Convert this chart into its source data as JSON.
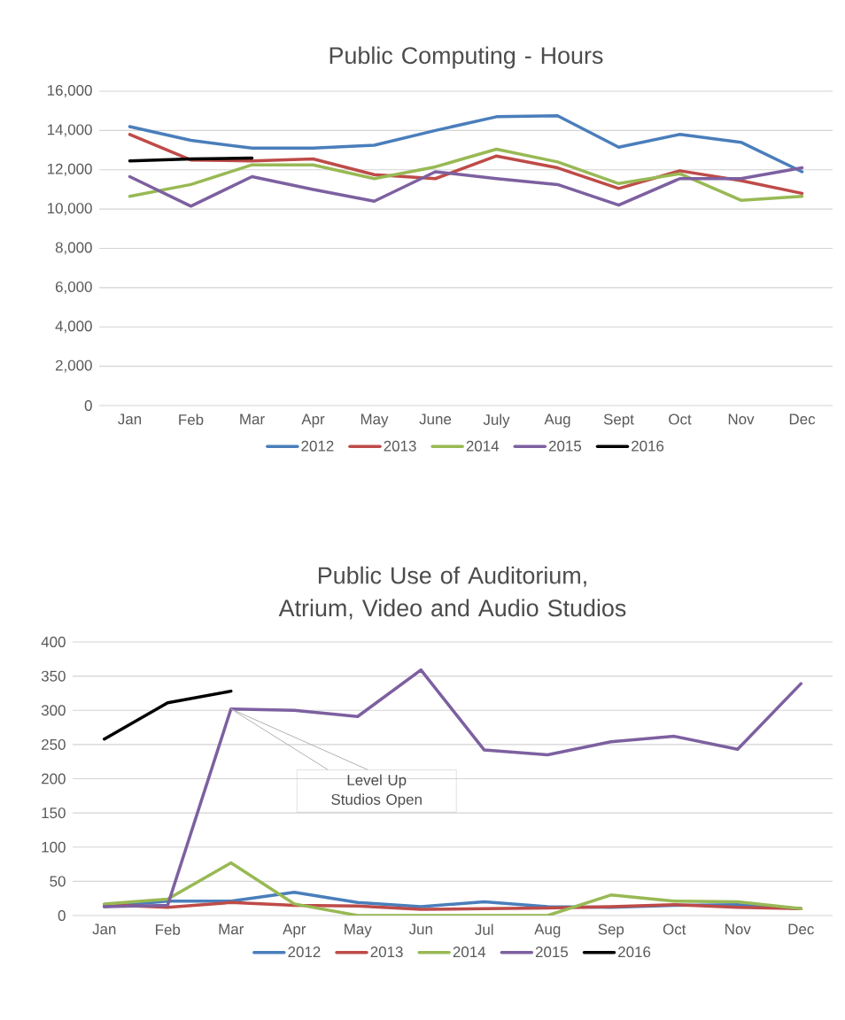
{
  "chart_data": [
    {
      "type": "line",
      "title": "Public Computing - Hours",
      "categories": [
        "Jan",
        "Feb",
        "Mar",
        "Apr",
        "May",
        "June",
        "July",
        "Aug",
        "Sept",
        "Oct",
        "Nov",
        "Dec"
      ],
      "series": [
        {
          "name": "2012",
          "color": "#4a7ebb",
          "values": [
            14200,
            13500,
            13100,
            13100,
            13250,
            14000,
            14700,
            14750,
            13150,
            13800,
            13400,
            11900
          ]
        },
        {
          "name": "2013",
          "color": "#be4b48",
          "values": [
            13800,
            12500,
            12450,
            12550,
            11750,
            11550,
            12700,
            12100,
            11050,
            11950,
            11450,
            10800
          ]
        },
        {
          "name": "2014",
          "color": "#98b954",
          "values": [
            10650,
            11250,
            12250,
            12250,
            11550,
            12150,
            13050,
            12400,
            11300,
            11800,
            10450,
            10650
          ]
        },
        {
          "name": "2015",
          "color": "#7d60a0",
          "values": [
            11650,
            10150,
            11650,
            11000,
            10400,
            11900,
            11550,
            11250,
            10200,
            11550,
            11550,
            12100
          ]
        },
        {
          "name": "2016",
          "color": "#000000",
          "values": [
            12450,
            12550,
            12600,
            null,
            null,
            null,
            null,
            null,
            null,
            null,
            null,
            null
          ]
        }
      ],
      "ylim": [
        0,
        16000
      ],
      "yticks": [
        0,
        {
          "value": 2000,
          "label": "2,000"
        },
        {
          "value": 4000,
          "label": "4,000"
        },
        {
          "value": 6000,
          "label": "6,000"
        },
        {
          "value": 8000,
          "label": "8,000"
        },
        {
          "value": 10000,
          "label": "10,000"
        },
        {
          "value": 12000,
          "label": "12,000"
        },
        {
          "value": 14000,
          "label": "14,000"
        },
        {
          "value": 16000,
          "label": "16,000"
        }
      ],
      "grid": "y",
      "legend": "bottom"
    },
    {
      "type": "line",
      "title": "Public Use of Auditorium, Atrium, Video and Audio Studios",
      "categories": [
        "Jan",
        "Feb",
        "Mar",
        "Apr",
        "May",
        "Jun",
        "Jul",
        "Aug",
        "Sep",
        "Oct",
        "Nov",
        "Dec"
      ],
      "series": [
        {
          "name": "2012",
          "color": "#4a7ebb",
          "values": [
            13,
            21,
            21,
            34,
            19,
            13,
            20,
            13,
            12,
            15,
            16,
            10
          ]
        },
        {
          "name": "2013",
          "color": "#be4b48",
          "values": [
            16,
            12,
            19,
            15,
            14,
            9,
            10,
            11,
            13,
            16,
            12,
            10
          ]
        },
        {
          "name": "2014",
          "color": "#98b954",
          "values": [
            17,
            24,
            77,
            17,
            0,
            0,
            0,
            0,
            30,
            21,
            20,
            10
          ]
        },
        {
          "name": "2015",
          "color": "#7d60a0",
          "values": [
            13,
            15,
            302,
            300,
            291,
            359,
            242,
            235,
            254,
            262,
            243,
            339
          ]
        },
        {
          "name": "2016",
          "color": "#000000",
          "values": [
            258,
            311,
            328,
            null,
            null,
            null,
            null,
            null,
            null,
            null,
            null,
            null
          ]
        }
      ],
      "ylim": [
        0,
        400
      ],
      "yticks": [
        0,
        50,
        100,
        150,
        200,
        250,
        300,
        350,
        400
      ],
      "grid": "y",
      "legend": "bottom",
      "annotations": [
        {
          "text": "Level Up Studios Open",
          "x": "Mar",
          "y": 302
        }
      ]
    }
  ]
}
